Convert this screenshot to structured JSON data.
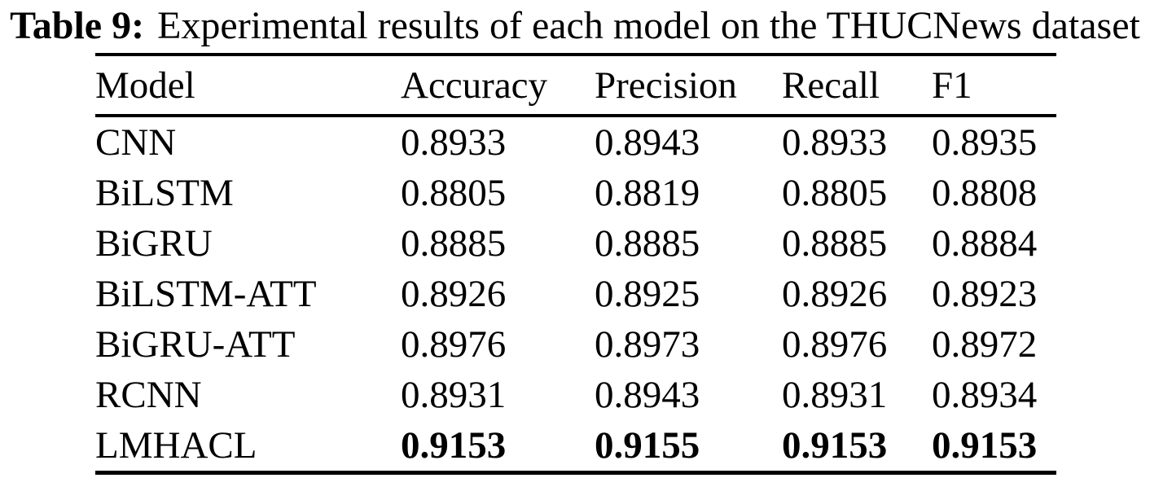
{
  "caption": {
    "label": "Table 9:",
    "text": "Experimental results of each model on the THUCNews dataset"
  },
  "table": {
    "columns": [
      "Model",
      "Accuracy",
      "Precision",
      "Recall",
      "F1"
    ],
    "rows": [
      {
        "model": "CNN",
        "accuracy": "0.8933",
        "precision": "0.8943",
        "recall": "0.8933",
        "f1": "0.8935",
        "bold": false
      },
      {
        "model": "BiLSTM",
        "accuracy": "0.8805",
        "precision": "0.8819",
        "recall": "0.8805",
        "f1": "0.8808",
        "bold": false
      },
      {
        "model": "BiGRU",
        "accuracy": "0.8885",
        "precision": "0.8885",
        "recall": "0.8885",
        "f1": "0.8884",
        "bold": false
      },
      {
        "model": "BiLSTM-ATT",
        "accuracy": "0.8926",
        "precision": "0.8925",
        "recall": "0.8926",
        "f1": "0.8923",
        "bold": false
      },
      {
        "model": "BiGRU-ATT",
        "accuracy": "0.8976",
        "precision": "0.8973",
        "recall": "0.8976",
        "f1": "0.8972",
        "bold": false
      },
      {
        "model": "RCNN",
        "accuracy": "0.8931",
        "precision": "0.8943",
        "recall": "0.8931",
        "f1": "0.8934",
        "bold": false
      },
      {
        "model": "LMHACL",
        "accuracy": "0.9153",
        "precision": "0.9155",
        "recall": "0.9153",
        "f1": "0.9153",
        "bold": true
      }
    ],
    "text_color": "#000000",
    "rule_color": "#000000"
  }
}
